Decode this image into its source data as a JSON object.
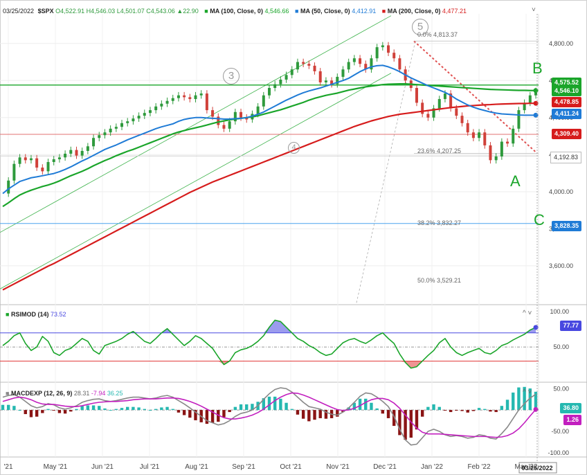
{
  "header": {
    "date": "03/25/2022",
    "symbol": "$SPX",
    "ohlc": {
      "o": "O4,522.91",
      "h": "H4,546.03",
      "l": "L4,501.07",
      "c": "C4,543.06",
      "chg": "▲22.90"
    },
    "ma100": {
      "label": "MA (100, Close, 0)",
      "value": "4,546.66"
    },
    "ma50": {
      "label": "MA (50, Close, 0)",
      "value": "4,412.91"
    },
    "ma200": {
      "label": "MA (200, Close, 0)",
      "value": "4,477.21"
    },
    "marker": "■",
    "collapse": "˅"
  },
  "rsi": {
    "label": "RSIMOD (14)",
    "value": "73.52",
    "tag": "77.77",
    "controls": "^  ˅"
  },
  "macd": {
    "label": "MACDEXP (12, 26, 9)",
    "v1": "28.31",
    "v2": "-7.94",
    "v3": "36.25",
    "tag1": "36.80",
    "tag2": "1.26",
    "controls": "^  ˅"
  },
  "colors": {
    "up": "#2e9a3c",
    "down": "#d0413a",
    "ma50": "#1f7bd6",
    "ma100": "#1aa52a",
    "ma200": "#d61c1c",
    "rsi": "#1aa52a",
    "rsi_fill_hi": "#4848e0",
    "rsi_fill_lo": "#e23c3c",
    "macd": "#888888",
    "signal": "#c21fbf",
    "hist_pos": "#25b8b0",
    "hist_neg": "#8a1414"
  },
  "price_tags": [
    {
      "text": "4,575.52",
      "color": "#1aa52a",
      "kind": "solid"
    },
    {
      "text": "4,546.10",
      "color": "#1aa52a",
      "kind": "solid"
    },
    {
      "text": "4,478.85",
      "color": "#d61c1c",
      "kind": "solid"
    },
    {
      "text": "4,411.24",
      "color": "#1f7bd6",
      "kind": "solid"
    },
    {
      "text": "4,309.40",
      "color": "#d61c1c",
      "kind": "solid"
    },
    {
      "text": "4,192.83",
      "color": "#888888",
      "kind": "outline"
    },
    {
      "text": "3,828.35",
      "color": "#1f7bd6",
      "kind": "solid"
    }
  ],
  "annotations": {
    "waves": [
      "3",
      "4",
      "5"
    ],
    "letters": [
      "A",
      "B",
      "C"
    ],
    "fib": [
      "0.0% 4,813.37",
      "23.6% 4,207.25",
      "38.2% 3,832.27",
      "50.0% 3,529.21"
    ]
  },
  "chart_data": {
    "type": "line",
    "title": "$SPX daily",
    "x_ticks": [
      "'21",
      "May '21",
      "Jun '21",
      "Jul '21",
      "Aug '21",
      "Sep '21",
      "Oct '21",
      "Nov '21",
      "Dec '21",
      "Jan '22",
      "Feb '22",
      "Mar '22"
    ],
    "x_end_label": "03/25/2022",
    "price_ylim": [
      3390,
      4960
    ],
    "price_ticks": [
      "4,800.00",
      "4,600.00",
      "4,400.00",
      "4,200.00",
      "4,000.00",
      "3,800.00",
      "3,600.00"
    ],
    "close_series": [
      3990,
      4060,
      4150,
      4185,
      4170,
      4180,
      4130,
      4110,
      4160,
      4175,
      4185,
      4205,
      4225,
      4195,
      4220,
      4245,
      4290,
      4305,
      4320,
      4340,
      4350,
      4370,
      4380,
      4395,
      4410,
      4425,
      4440,
      4460,
      4475,
      4490,
      4505,
      4520,
      4510,
      4500,
      4520,
      4530,
      4440,
      4405,
      4360,
      4340,
      4380,
      4430,
      4400,
      4390,
      4420,
      4460,
      4520,
      4560,
      4580,
      4605,
      4630,
      4660,
      4700,
      4690,
      4680,
      4650,
      4590,
      4600,
      4580,
      4620,
      4660,
      4700,
      4720,
      4690,
      4660,
      4720,
      4780,
      4790,
      4750,
      4720,
      4660,
      4600,
      4560,
      4480,
      4420,
      4400,
      4450,
      4500,
      4530,
      4450,
      4410,
      4370,
      4320,
      4290,
      4320,
      4250,
      4170,
      4190,
      4270,
      4260,
      4340,
      4440,
      4480,
      4520,
      4543
    ],
    "ma100": [
      3920,
      3940,
      3962,
      3982,
      3996,
      4008,
      4018,
      4028,
      4036,
      4046,
      4058,
      4072,
      4086,
      4098,
      4110,
      4124,
      4140,
      4154,
      4168,
      4180,
      4194,
      4206,
      4218,
      4228,
      4240,
      4252,
      4264,
      4276,
      4288,
      4300,
      4312,
      4322,
      4330,
      4338,
      4345,
      4352,
      4360,
      4368,
      4376,
      4382,
      4388,
      4392,
      4396,
      4400,
      4404,
      4410,
      4418,
      4426,
      4434,
      4442,
      4452,
      4462,
      4472,
      4482,
      4494,
      4504,
      4512,
      4520,
      4526,
      4532,
      4540,
      4548,
      4554,
      4560,
      4566,
      4570,
      4574,
      4578,
      4580,
      4581,
      4582,
      4582,
      4580,
      4578,
      4576,
      4574,
      4572,
      4570,
      4568,
      4566,
      4564,
      4562,
      4560,
      4558,
      4556,
      4554,
      4552,
      4551,
      4550,
      4549,
      4548,
      4547,
      4547,
      4546,
      4546
    ],
    "ma50": [
      3990,
      4015,
      4035,
      4055,
      4065,
      4075,
      4080,
      4086,
      4092,
      4098,
      4108,
      4120,
      4134,
      4150,
      4166,
      4180,
      4196,
      4212,
      4228,
      4240,
      4252,
      4266,
      4280,
      4292,
      4304,
      4316,
      4328,
      4340,
      4350,
      4358,
      4366,
      4380,
      4390,
      4396,
      4400,
      4400,
      4398,
      4396,
      4394,
      4392,
      4392,
      4394,
      4396,
      4400,
      4408,
      4418,
      4430,
      4446,
      4462,
      4478,
      4494,
      4508,
      4522,
      4534,
      4544,
      4552,
      4560,
      4570,
      4580,
      4590,
      4600,
      4612,
      4630,
      4648,
      4662,
      4674,
      4680,
      4682,
      4674,
      4662,
      4648,
      4630,
      4614,
      4600,
      4586,
      4572,
      4560,
      4548,
      4536,
      4520,
      4500,
      4484,
      4468,
      4456,
      4446,
      4438,
      4430,
      4424,
      4420,
      4418,
      4416,
      4414,
      4413,
      4413,
      4413
    ],
    "ma200": [
      3470,
      3486,
      3502,
      3518,
      3534,
      3550,
      3566,
      3582,
      3598,
      3612,
      3628,
      3644,
      3660,
      3676,
      3692,
      3708,
      3724,
      3740,
      3756,
      3772,
      3788,
      3804,
      3820,
      3836,
      3852,
      3868,
      3884,
      3900,
      3916,
      3932,
      3948,
      3964,
      3980,
      3996,
      4010,
      4024,
      4038,
      4052,
      4064,
      4076,
      4088,
      4100,
      4112,
      4124,
      4136,
      4148,
      4160,
      4172,
      4184,
      4196,
      4208,
      4220,
      4232,
      4244,
      4256,
      4268,
      4280,
      4292,
      4304,
      4316,
      4328,
      4340,
      4352,
      4362,
      4372,
      4382,
      4390,
      4398,
      4406,
      4412,
      4418,
      4422,
      4426,
      4430,
      4434,
      4438,
      4442,
      4446,
      4450,
      4454,
      4457,
      4460,
      4463,
      4465,
      4467,
      4469,
      4470,
      4472,
      4473,
      4474,
      4475,
      4476,
      4476,
      4477,
      4477
    ],
    "horizontal_levels": [
      4575.52,
      4478.85,
      4309.4,
      4192.83,
      3828.35
    ],
    "rsi_ylim": [
      0,
      110
    ],
    "rsi_ticks": [
      "100.00",
      "50.00"
    ],
    "rsi_bands": [
      30,
      70
    ],
    "rsi_series": [
      52,
      58,
      66,
      70,
      55,
      45,
      50,
      65,
      58,
      42,
      38,
      45,
      48,
      55,
      62,
      58,
      45,
      40,
      52,
      55,
      58,
      62,
      68,
      72,
      65,
      58,
      55,
      62,
      70,
      76,
      68,
      60,
      52,
      58,
      66,
      62,
      55,
      48,
      36,
      25,
      30,
      42,
      46,
      48,
      52,
      58,
      66,
      78,
      88,
      86,
      78,
      70,
      62,
      58,
      52,
      48,
      42,
      38,
      40,
      48,
      56,
      60,
      62,
      58,
      55,
      60,
      66,
      70,
      62,
      55,
      40,
      28,
      20,
      22,
      30,
      38,
      45,
      56,
      62,
      50,
      42,
      38,
      42,
      45,
      48,
      42,
      40,
      45,
      52,
      55,
      60,
      64,
      68,
      74,
      77.77
    ],
    "macd_ylim": [
      -110,
      65
    ],
    "macd_ticks": [
      "50.00",
      "-50.00",
      "-100.00"
    ],
    "macd_series": [
      30,
      34,
      36,
      30,
      20,
      10,
      5,
      8,
      15,
      12,
      5,
      2,
      5,
      10,
      18,
      22,
      25,
      26,
      22,
      20,
      22,
      25,
      28,
      30,
      30,
      28,
      26,
      28,
      32,
      34,
      30,
      22,
      14,
      5,
      -5,
      -15,
      -25,
      -30,
      -35,
      -32,
      -25,
      -15,
      -8,
      -5,
      0,
      10,
      25,
      38,
      48,
      52,
      50,
      42,
      30,
      18,
      8,
      5,
      2,
      -5,
      -10,
      -12,
      -5,
      5,
      18,
      32,
      40,
      38,
      30,
      20,
      8,
      -15,
      -45,
      -70,
      -82,
      -80,
      -65,
      -50,
      -45,
      -50,
      -58,
      -62,
      -60,
      -62,
      -66,
      -64,
      -58,
      -60,
      -66,
      -68,
      -55,
      -40,
      -20,
      0,
      15,
      28,
      36.8
    ],
    "signal_series": [
      20,
      24,
      28,
      30,
      28,
      24,
      18,
      14,
      13,
      13,
      11,
      9,
      8,
      8,
      10,
      13,
      16,
      18,
      19,
      20,
      20,
      21,
      22,
      24,
      25,
      26,
      26,
      26,
      27,
      28,
      28,
      27,
      24,
      20,
      15,
      9,
      2,
      -5,
      -12,
      -18,
      -21,
      -21,
      -19,
      -16,
      -12,
      -6,
      2,
      12,
      22,
      30,
      36,
      40,
      39,
      35,
      30,
      24,
      18,
      12,
      6,
      1,
      -1,
      0,
      4,
      10,
      18,
      24,
      27,
      27,
      24,
      16,
      4,
      -12,
      -28,
      -42,
      -52,
      -56,
      -56,
      -56,
      -57,
      -58,
      -59,
      -60,
      -61,
      -62,
      -62,
      -62,
      -63,
      -64,
      -63,
      -60,
      -54,
      -44,
      -30,
      -14,
      1.26
    ]
  }
}
